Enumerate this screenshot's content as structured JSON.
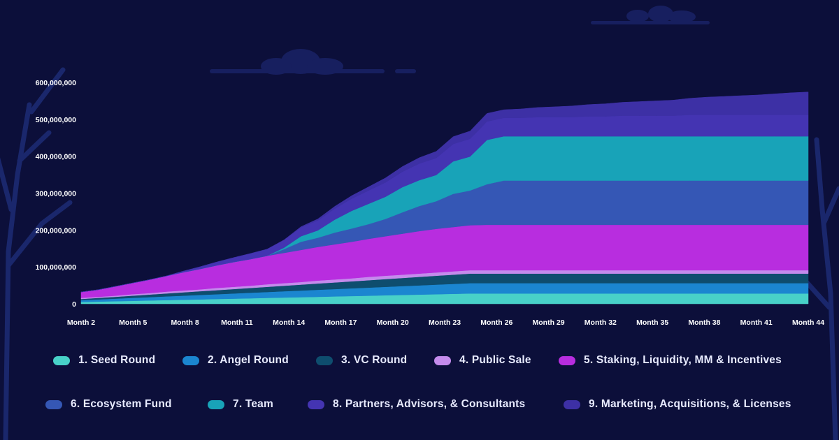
{
  "chart_data": {
    "type": "area",
    "stacked": true,
    "title": "",
    "xlabel": "",
    "ylabel": "",
    "ylim": [
      0,
      600000000
    ],
    "y_ticks": [
      "0",
      "100,000,000",
      "200,000,000",
      "300,000,000",
      "400,000,000",
      "500,000,000",
      "600,000,000"
    ],
    "x_tick_labels": [
      "Month 2",
      "Month 5",
      "Month 8",
      "Month 11",
      "Month 14",
      "Month 17",
      "Month 20",
      "Month 23",
      "Month 26",
      "Month 29",
      "Month 32",
      "Month 35",
      "Month 38",
      "Month 41",
      "Month 44"
    ],
    "months": [
      1,
      2,
      3,
      4,
      5,
      6,
      7,
      8,
      9,
      10,
      11,
      12,
      13,
      14,
      15,
      16,
      17,
      18,
      19,
      20,
      21,
      22,
      23,
      24,
      25,
      26,
      27,
      28,
      29,
      30,
      31,
      32,
      33,
      34,
      35,
      36,
      37,
      38,
      39,
      40,
      41,
      42,
      43,
      44
    ],
    "legend_position": "bottom",
    "series": [
      {
        "name": "1. Seed Round",
        "color": "#48d1c8",
        "values": [
          5000000,
          6000000,
          7000000,
          8000000,
          9000000,
          10000000,
          11000000,
          12000000,
          13000000,
          14000000,
          15000000,
          16000000,
          17000000,
          18000000,
          19000000,
          20000000,
          21000000,
          22000000,
          23000000,
          24000000,
          25000000,
          26000000,
          27000000,
          28000000,
          28000000,
          28000000,
          28000000,
          28000000,
          28000000,
          28000000,
          28000000,
          28000000,
          28000000,
          28000000,
          28000000,
          28000000,
          28000000,
          28000000,
          28000000,
          28000000,
          28000000,
          28000000,
          28000000,
          28000000
        ]
      },
      {
        "name": "2. Angel Round",
        "color": "#1b86d0",
        "values": [
          5000000,
          6000000,
          7000000,
          8000000,
          9000000,
          10000000,
          11000000,
          12000000,
          13000000,
          14000000,
          15000000,
          16000000,
          17000000,
          18000000,
          19000000,
          20000000,
          21000000,
          22000000,
          23000000,
          24000000,
          25000000,
          26000000,
          27000000,
          28000000,
          28000000,
          28000000,
          28000000,
          28000000,
          28000000,
          28000000,
          28000000,
          28000000,
          28000000,
          28000000,
          28000000,
          28000000,
          28000000,
          28000000,
          28000000,
          28000000,
          28000000,
          28000000,
          28000000,
          28000000
        ]
      },
      {
        "name": "3. VC Round",
        "color": "#0e4d6e",
        "values": [
          3000000,
          4000000,
          5000000,
          6000000,
          7000000,
          8000000,
          9000000,
          10000000,
          11000000,
          12000000,
          13000000,
          14000000,
          15000000,
          16000000,
          17000000,
          18000000,
          19000000,
          20000000,
          21000000,
          22000000,
          23000000,
          24000000,
          25000000,
          26000000,
          26000000,
          26000000,
          26000000,
          26000000,
          26000000,
          26000000,
          26000000,
          26000000,
          26000000,
          26000000,
          26000000,
          26000000,
          26000000,
          26000000,
          26000000,
          26000000,
          26000000,
          26000000,
          26000000,
          26000000
        ]
      },
      {
        "name": "4. Public Sale",
        "color": "#c48bec",
        "values": [
          3000000,
          3000000,
          3000000,
          4000000,
          4000000,
          5000000,
          5000000,
          5000000,
          6000000,
          6000000,
          6000000,
          7000000,
          7000000,
          7000000,
          8000000,
          8000000,
          8000000,
          9000000,
          9000000,
          9000000,
          9000000,
          9000000,
          9000000,
          9000000,
          9000000,
          9000000,
          9000000,
          9000000,
          9000000,
          9000000,
          9000000,
          9000000,
          9000000,
          9000000,
          9000000,
          9000000,
          9000000,
          9000000,
          9000000,
          9000000,
          9000000,
          9000000,
          9000000,
          9000000
        ]
      },
      {
        "name": "5. Staking, Liquidity, MM & Incentives",
        "color": "#b82ddf",
        "values": [
          16000000,
          19000000,
          25000000,
          30000000,
          36000000,
          42000000,
          49000000,
          55000000,
          61000000,
          67000000,
          72000000,
          77000000,
          82000000,
          87000000,
          91000000,
          95000000,
          99000000,
          103000000,
          107000000,
          111000000,
          115000000,
          118000000,
          120000000,
          122000000,
          123000000,
          123000000,
          123000000,
          123000000,
          123000000,
          123000000,
          123000000,
          123000000,
          123000000,
          123000000,
          123000000,
          123000000,
          123000000,
          123000000,
          123000000,
          123000000,
          123000000,
          123000000,
          123000000,
          123000000
        ]
      },
      {
        "name": "6. Ecosystem Fund",
        "color": "#3557b5",
        "values": [
          0,
          0,
          0,
          0,
          0,
          0,
          0,
          0,
          0,
          0,
          0,
          0,
          10000000,
          22000000,
          25000000,
          32000000,
          36000000,
          40000000,
          47000000,
          58000000,
          68000000,
          75000000,
          90000000,
          94000000,
          110000000,
          120000000,
          120000000,
          120000000,
          120000000,
          120000000,
          120000000,
          120000000,
          120000000,
          120000000,
          120000000,
          120000000,
          120000000,
          120000000,
          120000000,
          120000000,
          120000000,
          120000000,
          120000000,
          120000000
        ]
      },
      {
        "name": "7. Team",
        "color": "#18a3b8",
        "values": [
          0,
          0,
          0,
          0,
          0,
          0,
          0,
          0,
          0,
          0,
          0,
          0,
          4000000,
          15000000,
          20000000,
          35000000,
          48000000,
          55000000,
          60000000,
          68000000,
          70000000,
          71000000,
          88000000,
          92000000,
          120000000,
          120000000,
          120000000,
          120000000,
          120000000,
          120000000,
          120000000,
          120000000,
          120000000,
          120000000,
          120000000,
          120000000,
          120000000,
          120000000,
          120000000,
          120000000,
          120000000,
          120000000,
          120000000,
          120000000
        ]
      },
      {
        "name": "8. Partners, Advisors, & Consultants",
        "color": "#4434b2",
        "values": [
          0,
          0,
          0,
          0,
          0,
          0,
          3000000,
          6000000,
          9000000,
          12000000,
          15000000,
          18000000,
          21000000,
          24000000,
          27000000,
          30000000,
          33000000,
          36000000,
          39000000,
          42000000,
          45000000,
          46000000,
          47000000,
          48000000,
          50000000,
          50000000,
          50000000,
          52000000,
          52000000,
          52000000,
          54000000,
          54000000,
          56000000,
          56000000,
          56000000,
          56000000,
          58000000,
          58000000,
          58000000,
          58000000,
          58000000,
          58000000,
          58000000,
          58000000
        ]
      },
      {
        "name": "9. Marketing, Acquisitions, & Licenses",
        "color": "#3d30a5",
        "values": [
          0,
          0,
          0,
          0,
          0,
          0,
          0,
          0,
          0,
          0,
          0,
          0,
          0,
          2000000,
          4000000,
          6000000,
          8000000,
          10000000,
          12000000,
          14000000,
          16000000,
          18000000,
          20000000,
          21000000,
          22000000,
          22000000,
          24000000,
          26000000,
          28000000,
          30000000,
          32000000,
          34000000,
          36000000,
          38000000,
          40000000,
          42000000,
          45000000,
          48000000,
          50000000,
          52000000,
          54000000,
          57000000,
          60000000,
          62000000
        ]
      }
    ]
  }
}
